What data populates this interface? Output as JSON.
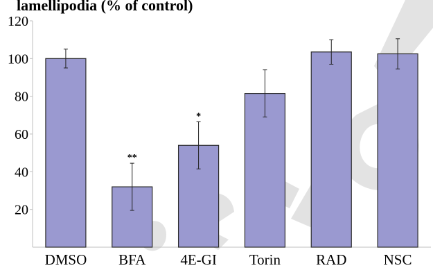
{
  "chart_data": {
    "type": "bar",
    "title": "lamellipodia (% of control)",
    "categories": [
      "DMSO",
      "BFA",
      "4E-GI",
      "Torin",
      "RAD",
      "NSC"
    ],
    "values": [
      100,
      32,
      54,
      81.5,
      103.5,
      102.5
    ],
    "errors": [
      5,
      12.5,
      12.5,
      12.5,
      6.5,
      8
    ],
    "annotations": [
      "",
      "**",
      "*",
      "",
      "",
      ""
    ],
    "ylim": [
      0,
      120
    ],
    "yticks": [
      "20",
      "40",
      "60",
      "80",
      "100",
      "120"
    ],
    "yticks_values": [
      20,
      40,
      60,
      80,
      100,
      120
    ],
    "xlabel": "",
    "ylabel": "",
    "bar_color": "#9a99d0",
    "bar_edge_color": "#2b2b2b",
    "grid": false,
    "legend": "none"
  }
}
